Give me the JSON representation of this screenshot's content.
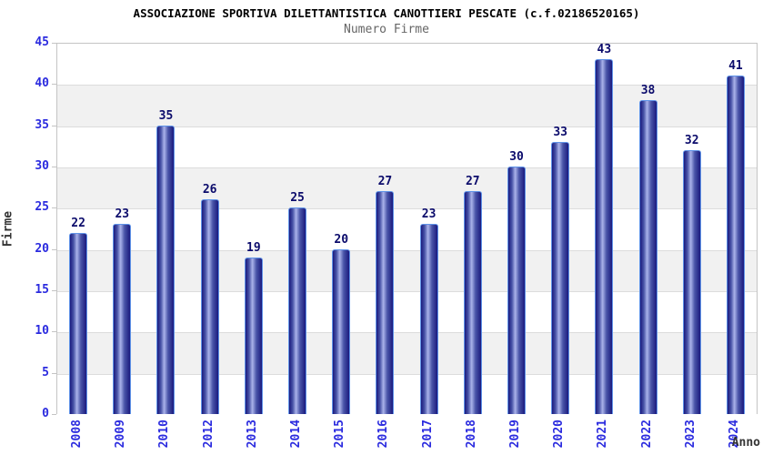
{
  "header": {
    "title": "ASSOCIAZIONE SPORTIVA DILETTANTISTICA CANOTTIERI PESCATE (c.f.02186520165)",
    "subtitle": "Numero Firme"
  },
  "chart_data": {
    "type": "bar",
    "title": "Numero Firme",
    "categories": [
      "2008",
      "2009",
      "2010",
      "2012",
      "2013",
      "2014",
      "2015",
      "2016",
      "2017",
      "2018",
      "2019",
      "2020",
      "2021",
      "2022",
      "2023",
      "2024"
    ],
    "values": [
      22,
      23,
      35,
      26,
      19,
      25,
      20,
      27,
      23,
      27,
      30,
      33,
      43,
      38,
      32,
      41
    ],
    "xlabel": "Anno",
    "ylabel": "Firme",
    "ylim": [
      0,
      45
    ],
    "ytick_step": 5,
    "legend": "none",
    "grid": "horizontal-bands-every-5",
    "bar_value_labels": "above-bars",
    "colors": {
      "bar_dark": "#1a1a7e",
      "bar_mid": "#4a55a8",
      "bar_light": "#aab3ea",
      "bar_border": "#5f93e8",
      "value_label": "#0b0b6b",
      "tick_label": "#2b2bdf",
      "axis_title": "#333333",
      "band_gray": "#f1f1f1",
      "band_white": "#ffffff",
      "grid_line": "#dcdcdc",
      "plot_border": "#c4c4c4",
      "title_color": "#000000",
      "subtitle_color": "#666666"
    }
  }
}
